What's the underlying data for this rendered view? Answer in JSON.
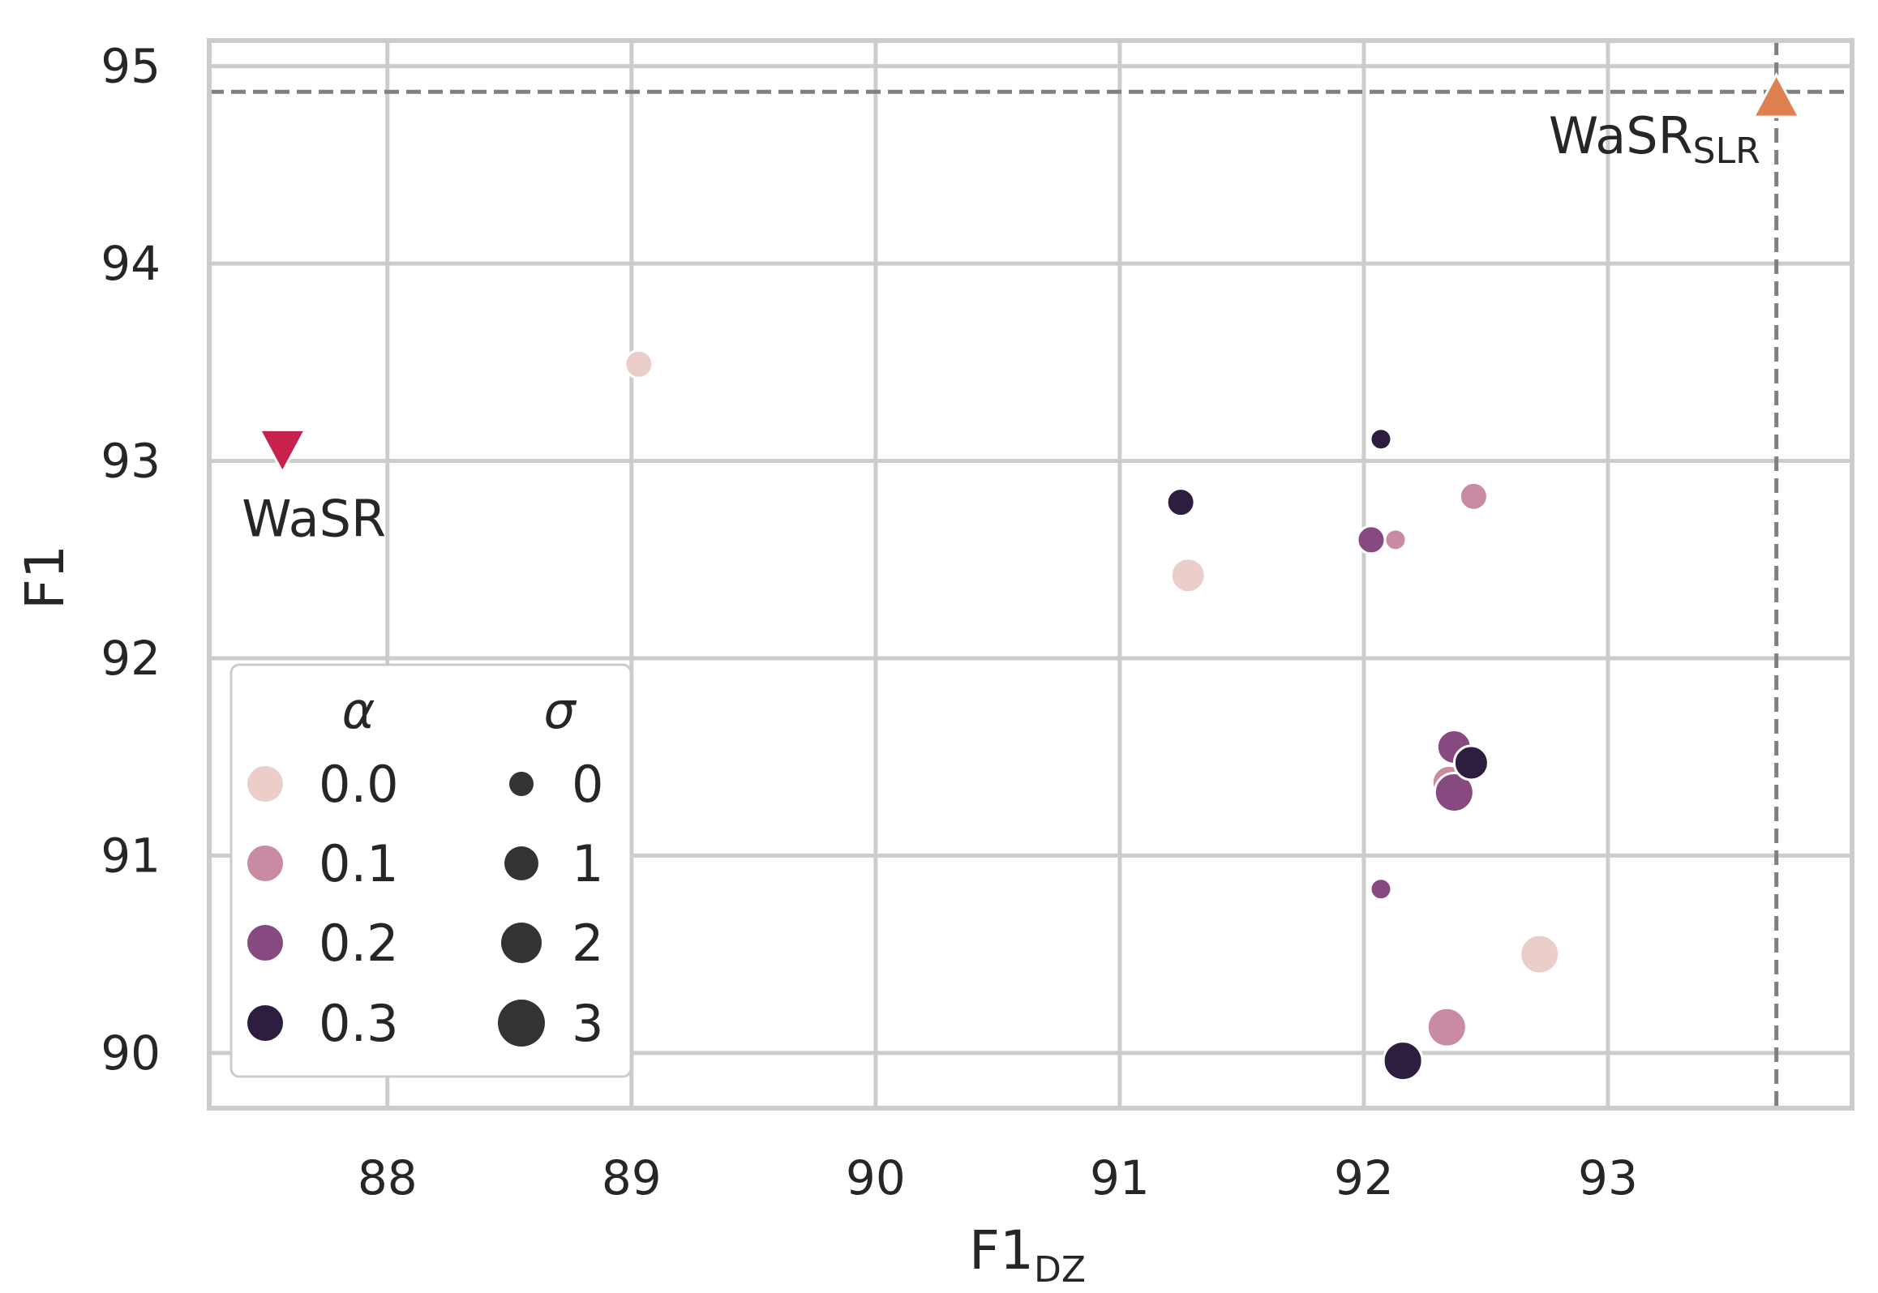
{
  "chart_data": {
    "type": "scatter",
    "xlabel": "F1",
    "xlabel_subscript": "DZ",
    "ylabel": "F1",
    "xlim": [
      87.27,
      94.0
    ],
    "ylim": [
      89.72,
      95.13
    ],
    "xticks": [
      "88",
      "89",
      "90",
      "91",
      "92",
      "93"
    ],
    "yticks": [
      "90",
      "91",
      "92",
      "93",
      "94",
      "95"
    ],
    "grid": true,
    "hue_label": "α",
    "size_label": "σ",
    "hue_levels": [
      {
        "label": "0.0",
        "color": "#ebcdc9"
      },
      {
        "label": "0.1",
        "color": "#c98aa3"
      },
      {
        "label": "0.2",
        "color": "#874a80"
      },
      {
        "label": "0.3",
        "color": "#2d1e3f"
      }
    ],
    "size_levels": [
      {
        "label": "0",
        "sigma": 0
      },
      {
        "label": "1",
        "sigma": 1
      },
      {
        "label": "2",
        "sigma": 2
      },
      {
        "label": "3",
        "sigma": 3
      }
    ],
    "legend_location": "lower-left",
    "points": [
      {
        "x": 89.03,
        "y": 93.49,
        "alpha": 0.0,
        "sigma": 1
      },
      {
        "x": 91.25,
        "y": 92.79,
        "alpha": 0.3,
        "sigma": 1
      },
      {
        "x": 91.28,
        "y": 92.42,
        "alpha": 0.0,
        "sigma": 2
      },
      {
        "x": 92.07,
        "y": 93.11,
        "alpha": 0.3,
        "sigma": 0
      },
      {
        "x": 92.45,
        "y": 92.82,
        "alpha": 0.1,
        "sigma": 1
      },
      {
        "x": 92.03,
        "y": 92.6,
        "alpha": 0.2,
        "sigma": 1
      },
      {
        "x": 92.13,
        "y": 92.6,
        "alpha": 0.1,
        "sigma": 0
      },
      {
        "x": 92.37,
        "y": 91.55,
        "alpha": 0.2,
        "sigma": 2
      },
      {
        "x": 92.35,
        "y": 91.37,
        "alpha": 0.1,
        "sigma": 2
      },
      {
        "x": 92.37,
        "y": 91.32,
        "alpha": 0.2,
        "sigma": 3
      },
      {
        "x": 92.44,
        "y": 91.47,
        "alpha": 0.3,
        "sigma": 2
      },
      {
        "x": 92.07,
        "y": 90.83,
        "alpha": 0.2,
        "sigma": 0
      },
      {
        "x": 92.72,
        "y": 90.5,
        "alpha": 0.0,
        "sigma": 3
      },
      {
        "x": 92.34,
        "y": 90.13,
        "alpha": 0.1,
        "sigma": 3
      },
      {
        "x": 92.16,
        "y": 89.96,
        "alpha": 0.3,
        "sigma": 3
      }
    ],
    "references": [
      {
        "name": "WaSR",
        "subscript": "",
        "x": 87.57,
        "y": 93.05,
        "marker": "triangle-down",
        "color": "#c7224e"
      },
      {
        "name": "WaSR",
        "subscript": "SLR",
        "x": 93.69,
        "y": 94.85,
        "marker": "triangle-up",
        "color": "#df8050"
      }
    ],
    "reference_lines": {
      "x": 93.69,
      "y": 94.87,
      "color": "#808080"
    }
  }
}
